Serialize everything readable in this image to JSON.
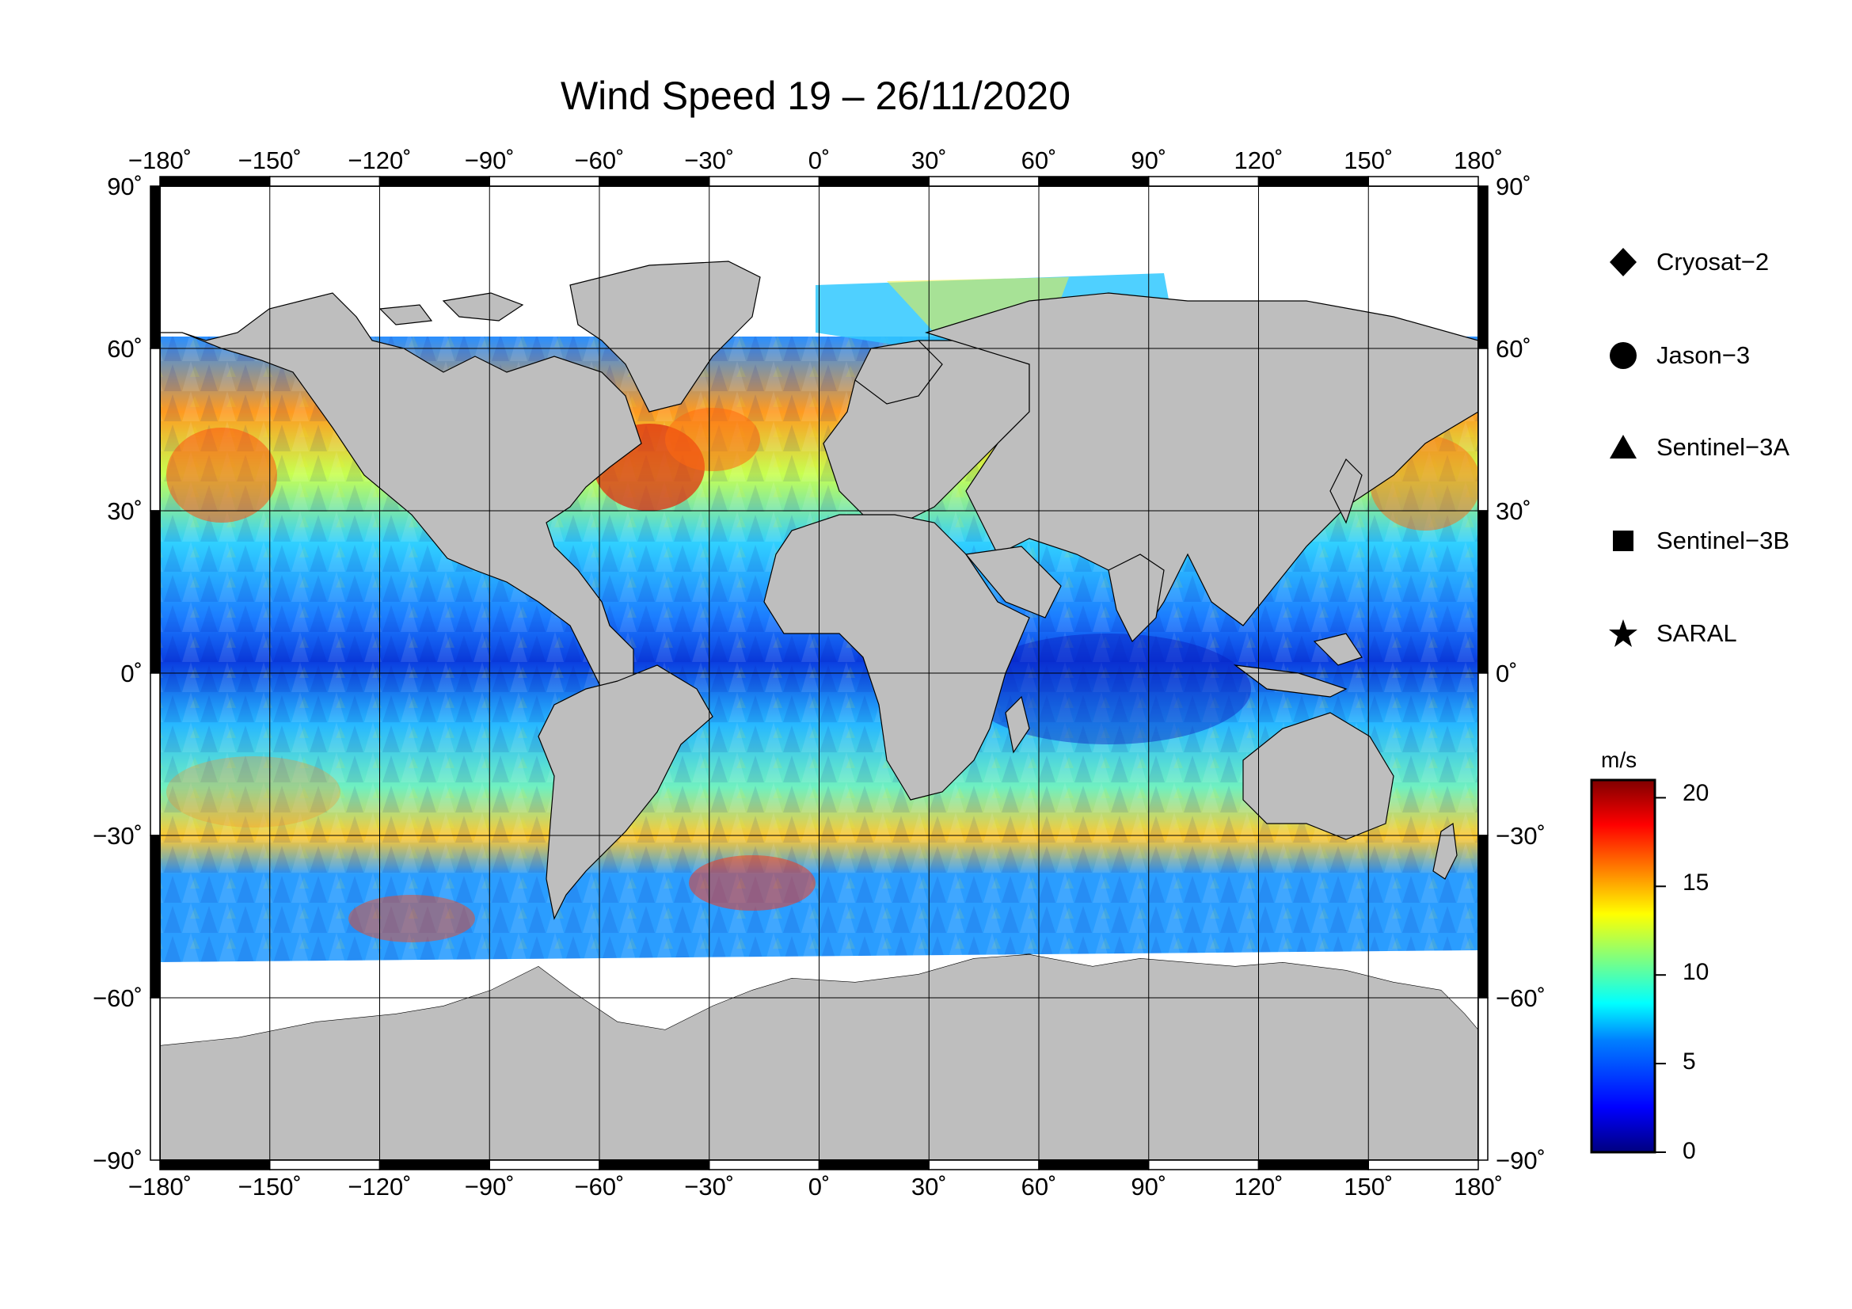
{
  "title": "Wind Speed 19 – 26/11/2020",
  "lon_labels": [
    "−180˚",
    "−150˚",
    "−120˚",
    "−90˚",
    "−60˚",
    "−30˚",
    "0˚",
    "30˚",
    "60˚",
    "90˚",
    "120˚",
    "150˚",
    "180˚"
  ],
  "lat_labels": [
    "90˚",
    "60˚",
    "30˚",
    "0˚",
    "−30˚",
    "−60˚",
    "−90˚"
  ],
  "legend": [
    {
      "symbol": "diamond",
      "label": "Cryosat−2"
    },
    {
      "symbol": "circle",
      "label": "Jason−3"
    },
    {
      "symbol": "triangle",
      "label": "Sentinel−3A"
    },
    {
      "symbol": "square",
      "label": "Sentinel−3B"
    },
    {
      "symbol": "star",
      "label": "SARAL"
    }
  ],
  "colorbar": {
    "unit": "m/s",
    "ticks": [
      "20",
      "15",
      "10",
      "5",
      "0"
    ],
    "range": [
      0,
      21
    ],
    "colors": [
      "#00007f",
      "#0000ff",
      "#007fff",
      "#00ffff",
      "#7fff7f",
      "#ffff00",
      "#ff7f00",
      "#ff0000",
      "#7f0000"
    ]
  },
  "map": {
    "land_color": "#bebebe",
    "ice_color": "#ffffff",
    "projection": "equirectangular",
    "lon_range": [
      -180,
      180
    ],
    "lat_range": [
      -90,
      90
    ],
    "grid_step_deg": 30
  }
}
